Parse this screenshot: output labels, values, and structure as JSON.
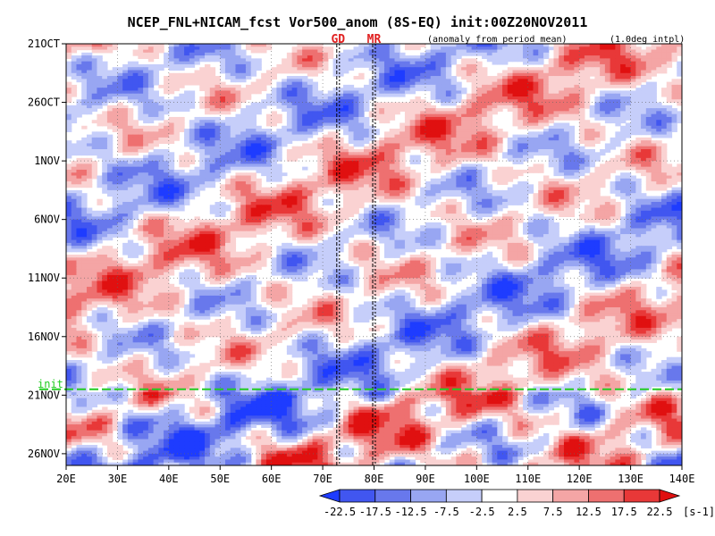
{
  "chart_data": {
    "type": "heatmap",
    "title": "NCEP_FNL+NICAM_fcst Vor500_anom (8S-EQ) init:00Z20NOV2011",
    "subtitle_left": "(anomaly from period mean)",
    "subtitle_right": "(1.0deg intpl)",
    "x": {
      "label": "",
      "min": 20,
      "max": 140,
      "ticks": [
        20,
        30,
        40,
        50,
        60,
        70,
        80,
        90,
        100,
        110,
        120,
        130,
        140
      ],
      "tick_labels": [
        "20E",
        "30E",
        "40E",
        "50E",
        "60E",
        "70E",
        "80E",
        "90E",
        "100E",
        "110E",
        "120E",
        "130E",
        "140E"
      ]
    },
    "y": {
      "label": "",
      "start_day": 0,
      "end_day": 36,
      "note": "days since 21 Oct 2011, time increases downward",
      "ticks": [
        0,
        5,
        10,
        15,
        20,
        25,
        30,
        35
      ],
      "tick_labels": [
        "21OCT",
        "26OCT",
        "1NOV",
        "6NOV",
        "11NOV",
        "16NOV",
        "21NOV",
        "26NOV"
      ]
    },
    "markers": [
      {
        "label": "GD",
        "lon": 73
      },
      {
        "label": "MR",
        "lon": 80
      }
    ],
    "init": {
      "label": "init",
      "day": 29.5,
      "color": "#22cc22"
    },
    "colorbar": {
      "unit": "[s-1]",
      "levels": [
        "-22.5",
        "-17.5",
        "-12.5",
        "-7.5",
        "-2.5",
        "2.5",
        "7.5",
        "12.5",
        "17.5",
        "22.5"
      ],
      "colors": [
        "#1e3cff",
        "#4156f0",
        "#6878ec",
        "#98a6f2",
        "#c6cefa",
        "#ffffff",
        "#fad2d2",
        "#f4a5a5",
        "#ee7070",
        "#e83838",
        "#e01010"
      ]
    },
    "colors": {
      "init_line": "#22cc22",
      "marker_text": "#e02020"
    }
  }
}
